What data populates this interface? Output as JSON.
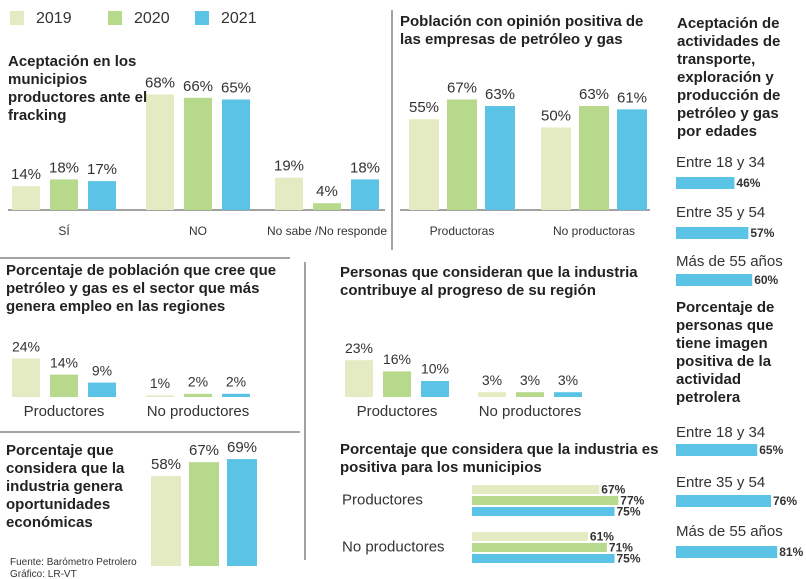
{
  "legend": {
    "items": [
      {
        "name": "2019",
        "color": "#e4eac1"
      },
      {
        "name": "2020",
        "color": "#b7d98c"
      },
      {
        "name": "2021",
        "color": "#5bc3e6"
      }
    ]
  },
  "chart_data": [
    {
      "type": "bar",
      "title": "Aceptación en los municipios productores ante el fracking",
      "categories": [
        "SÍ",
        "NO",
        "No sabe /No responde"
      ],
      "series": [
        {
          "values": [
            14,
            68,
            19
          ],
          "value_labels": [
            "14%",
            "68%",
            "19%"
          ]
        },
        {
          "values": [
            18,
            66,
            4
          ],
          "value_labels": [
            "18%",
            "66%",
            "4%"
          ]
        },
        {
          "values": [
            17,
            65,
            18
          ],
          "value_labels": [
            "17%",
            "65%",
            "18%"
          ]
        }
      ]
    },
    {
      "type": "bar",
      "title": "Población con opinión positiva de las empresas de petróleo y gas",
      "categories": [
        "Productoras",
        "No productoras"
      ],
      "series": [
        {
          "values": [
            55,
            50
          ],
          "value_labels": [
            "55%",
            "50%"
          ]
        },
        {
          "values": [
            67,
            63
          ],
          "value_labels": [
            "67%",
            "63%"
          ]
        },
        {
          "values": [
            63,
            61
          ],
          "value_labels": [
            "63%",
            "61%"
          ]
        }
      ]
    },
    {
      "type": "barh",
      "title": "Aceptación de actividades de transporte, exploración y producción de petróleo y gas por edades",
      "categories": [
        "Entre 18 y 34",
        "Entre 35 y 54",
        "Más de 55 años"
      ],
      "color": "#5bc3e6",
      "values": [
        46,
        57,
        60
      ],
      "value_labels": [
        "46%",
        "57%",
        "60%"
      ]
    },
    {
      "type": "bar",
      "title": "Porcentaje de población que cree que petróleo y gas es el sector que más genera empleo en las regiones",
      "categories": [
        "Productores",
        "No productores"
      ],
      "series": [
        {
          "values": [
            24,
            1
          ],
          "value_labels": [
            "24%",
            "1%"
          ]
        },
        {
          "values": [
            14,
            2
          ],
          "value_labels": [
            "14%",
            "2%"
          ]
        },
        {
          "values": [
            9,
            2
          ],
          "value_labels": [
            "9%",
            "2%"
          ]
        }
      ]
    },
    {
      "type": "bar",
      "title": "Personas que consideran que la industria contribuye al progreso de su región",
      "categories": [
        "Productores",
        "No productores"
      ],
      "series": [
        {
          "values": [
            23,
            3
          ],
          "value_labels": [
            "23%",
            "3%"
          ]
        },
        {
          "values": [
            16,
            3
          ],
          "value_labels": [
            "16%",
            "3%"
          ]
        },
        {
          "values": [
            10,
            3
          ],
          "value_labels": [
            "10%",
            "3%"
          ]
        }
      ]
    },
    {
      "type": "barh",
      "title": "Porcentaje de personas que tiene imagen positiva de la actividad petrolera",
      "categories": [
        "Entre 18 y 34",
        "Entre 35 y 54",
        "Más de 55 años"
      ],
      "color": "#5bc3e6",
      "values": [
        65,
        76,
        81
      ],
      "value_labels": [
        "65%",
        "76%",
        "81%"
      ]
    },
    {
      "type": "bar",
      "title": "Porcentaje que considera que la industria genera oportunidades económicas",
      "categories": [
        null
      ],
      "series": [
        {
          "values": [
            58
          ],
          "value_labels": [
            "58%"
          ]
        },
        {
          "values": [
            67
          ],
          "value_labels": [
            "67%"
          ]
        },
        {
          "values": [
            69
          ],
          "value_labels": [
            "69%"
          ]
        }
      ]
    },
    {
      "type": "barh-group",
      "title": "Porcentaje que considera que la industria es positiva para los municipios",
      "categories": [
        "Productores",
        "No productores"
      ],
      "series": [
        {
          "values": [
            67,
            61
          ],
          "value_labels": [
            "67%",
            "61%"
          ]
        },
        {
          "values": [
            77,
            71
          ],
          "value_labels": [
            "77%",
            "71%"
          ]
        },
        {
          "values": [
            75,
            75
          ],
          "value_labels": [
            "75%",
            "75%"
          ]
        }
      ]
    }
  ],
  "source": "Fuente: Barómetro Petrolero",
  "credit": "Gráfico: LR-VT"
}
